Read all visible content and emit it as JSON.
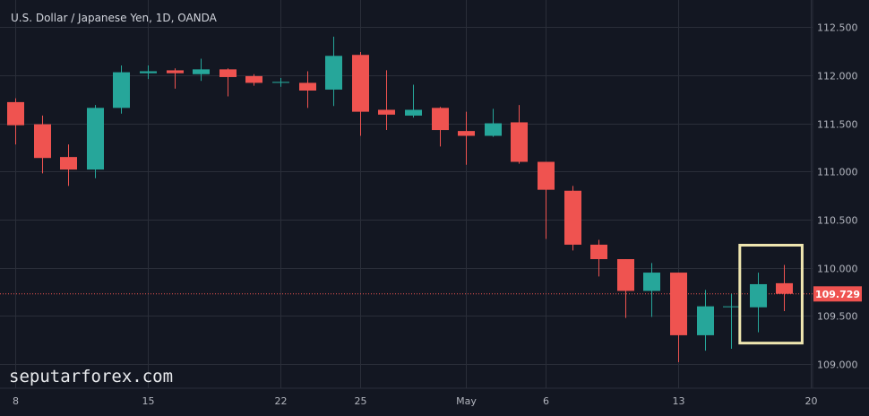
{
  "title": "U.S. Dollar / Japanese Yen, 1D, OANDA",
  "watermark": "seputarforex.com",
  "colors": {
    "background": "#131722",
    "grid": "#2a2e39",
    "up": "#26a69a",
    "down": "#ef5350",
    "highlight": "#efe6b0",
    "text": "#b2b5be"
  },
  "current_price": {
    "value": 109.729,
    "label": "109.729"
  },
  "chart_data": {
    "type": "candlestick",
    "title": "U.S. Dollar / Japanese Yen, 1D, OANDA",
    "ylim": [
      108.75,
      112.78
    ],
    "y_ticks": [
      {
        "value": 112.5,
        "label": "112.500"
      },
      {
        "value": 112.0,
        "label": "112.000"
      },
      {
        "value": 111.5,
        "label": "111.500"
      },
      {
        "value": 111.0,
        "label": "111.000"
      },
      {
        "value": 110.5,
        "label": "110.500"
      },
      {
        "value": 110.0,
        "label": "110.000"
      },
      {
        "value": 109.5,
        "label": "109.500"
      },
      {
        "value": 109.0,
        "label": "109.000"
      }
    ],
    "x_ticks": [
      {
        "index": 0,
        "label": "8"
      },
      {
        "index": 5,
        "label": "15"
      },
      {
        "index": 10,
        "label": "22"
      },
      {
        "index": 13,
        "label": "25"
      },
      {
        "index": 17,
        "label": "May"
      },
      {
        "index": 20,
        "label": "6"
      },
      {
        "index": 25,
        "label": "13"
      },
      {
        "index": 30,
        "label": "20"
      }
    ],
    "candles": [
      {
        "open": 111.72,
        "high": 111.76,
        "low": 111.28,
        "close": 111.48
      },
      {
        "open": 111.49,
        "high": 111.58,
        "low": 110.98,
        "close": 111.14
      },
      {
        "open": 111.15,
        "high": 111.28,
        "low": 110.85,
        "close": 111.02
      },
      {
        "open": 111.02,
        "high": 111.69,
        "low": 110.93,
        "close": 111.66
      },
      {
        "open": 111.66,
        "high": 112.1,
        "low": 111.6,
        "close": 112.03
      },
      {
        "open": 112.02,
        "high": 112.1,
        "low": 111.96,
        "close": 112.04
      },
      {
        "open": 112.05,
        "high": 112.07,
        "low": 111.86,
        "close": 112.02
      },
      {
        "open": 112.01,
        "high": 112.17,
        "low": 111.94,
        "close": 112.06
      },
      {
        "open": 112.06,
        "high": 112.07,
        "low": 111.78,
        "close": 111.98
      },
      {
        "open": 111.99,
        "high": 112.01,
        "low": 111.89,
        "close": 111.92
      },
      {
        "open": 111.92,
        "high": 111.97,
        "low": 111.88,
        "close": 111.93
      },
      {
        "open": 111.92,
        "high": 112.04,
        "low": 111.66,
        "close": 111.84
      },
      {
        "open": 111.85,
        "high": 112.4,
        "low": 111.68,
        "close": 112.2
      },
      {
        "open": 112.21,
        "high": 112.24,
        "low": 111.37,
        "close": 111.62
      },
      {
        "open": 111.64,
        "high": 112.05,
        "low": 111.43,
        "close": 111.59
      },
      {
        "open": 111.58,
        "high": 111.9,
        "low": 111.56,
        "close": 111.64
      },
      {
        "open": 111.66,
        "high": 111.67,
        "low": 111.26,
        "close": 111.43
      },
      {
        "open": 111.42,
        "high": 111.62,
        "low": 111.07,
        "close": 111.37
      },
      {
        "open": 111.37,
        "high": 111.65,
        "low": 111.36,
        "close": 111.5
      },
      {
        "open": 111.51,
        "high": 111.69,
        "low": 111.08,
        "close": 111.1
      },
      {
        "open": 111.1,
        "high": 111.1,
        "low": 110.3,
        "close": 110.81
      },
      {
        "open": 110.8,
        "high": 110.85,
        "low": 110.18,
        "close": 110.24
      },
      {
        "open": 110.24,
        "high": 110.29,
        "low": 109.91,
        "close": 110.09
      },
      {
        "open": 110.09,
        "high": 110.09,
        "low": 109.48,
        "close": 109.76
      },
      {
        "open": 109.76,
        "high": 110.05,
        "low": 109.49,
        "close": 109.95
      },
      {
        "open": 109.95,
        "high": 109.95,
        "low": 109.02,
        "close": 109.3
      },
      {
        "open": 109.3,
        "high": 109.77,
        "low": 109.14,
        "close": 109.6
      },
      {
        "open": 109.6,
        "high": 109.73,
        "low": 109.16,
        "close": 109.6
      },
      {
        "open": 109.59,
        "high": 109.95,
        "low": 109.33,
        "close": 109.83
      },
      {
        "open": 109.84,
        "high": 110.03,
        "low": 109.55,
        "close": 109.73
      }
    ],
    "highlight": {
      "from_index": 28,
      "to_index": 29
    }
  }
}
